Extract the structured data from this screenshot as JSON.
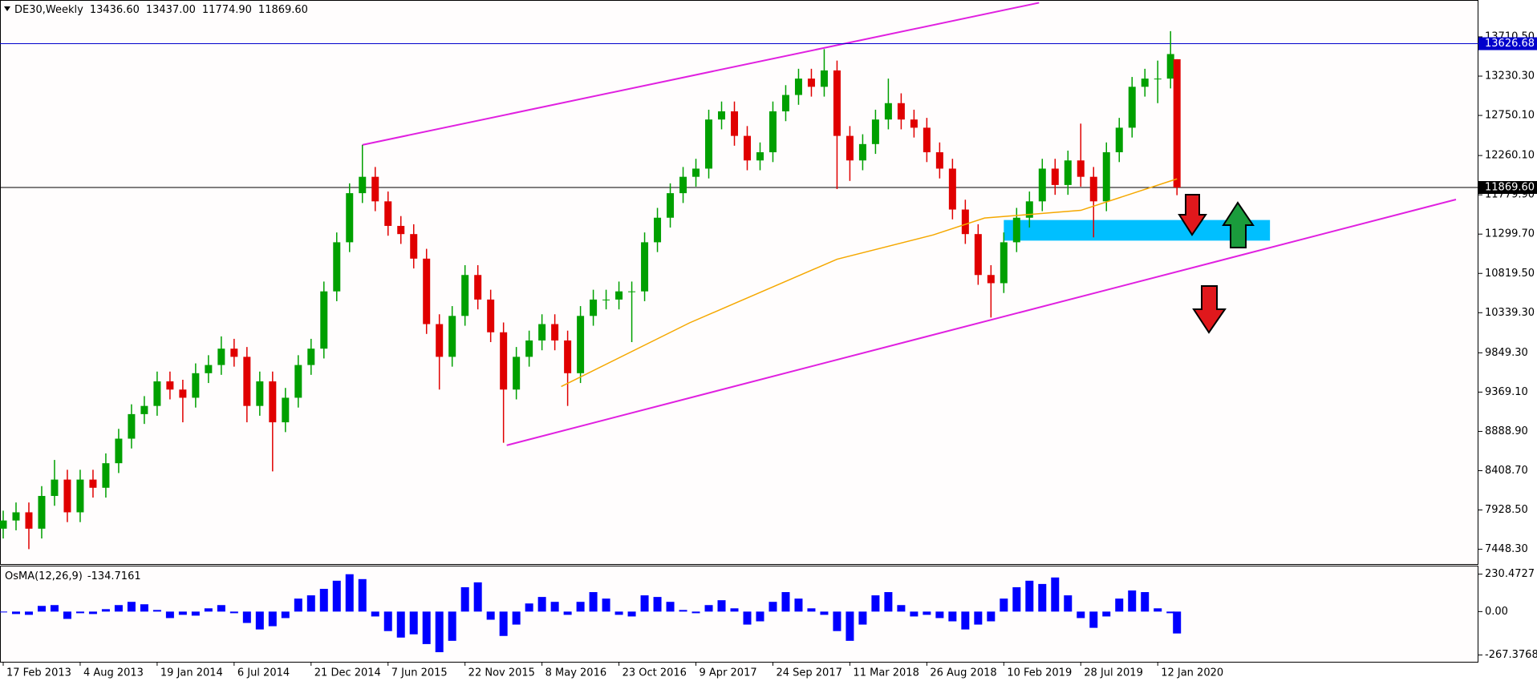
{
  "chart_data": [
    {
      "type": "candlestick",
      "title": "DE30,Weekly",
      "title_values": [
        {
          "value": 13436.6,
          "label": "13436.60"
        },
        {
          "value": 13437,
          "label": "13437.00"
        },
        {
          "value": 11774.9,
          "label": "11774.90"
        },
        {
          "value": 11869.6,
          "label": "11869.60"
        }
      ],
      "x": [
        0,
        4,
        8,
        12,
        16,
        20,
        24,
        28,
        32,
        36,
        40,
        44,
        48,
        52,
        56,
        60,
        64,
        68,
        72,
        76,
        80,
        84,
        88,
        92,
        96,
        100,
        104,
        108,
        112,
        116,
        120,
        124,
        128,
        132,
        136,
        140,
        144,
        148,
        152,
        156,
        160,
        164,
        168,
        172,
        176,
        180,
        184,
        188,
        192,
        196,
        200,
        204,
        208,
        212,
        216,
        220,
        224,
        228,
        232,
        236,
        240,
        244,
        248,
        252,
        256,
        260,
        264,
        268,
        272,
        276,
        280,
        284,
        288,
        292,
        296,
        300,
        304,
        308,
        312,
        316,
        320,
        324,
        328,
        332,
        336,
        340,
        344,
        348,
        352,
        356,
        360,
        364,
        366
      ],
      "open": [
        7700,
        7800,
        7900,
        7700,
        8100,
        8300,
        7900,
        8300,
        8200,
        8500,
        8800,
        9100,
        9200,
        9500,
        9400,
        9300,
        9600,
        9700,
        9900,
        9800,
        9200,
        9500,
        9000,
        9300,
        9700,
        9900,
        10600,
        11200,
        11800,
        12000,
        11700,
        11400,
        11300,
        11000,
        10200,
        9800,
        10300,
        10800,
        10500,
        10100,
        9400,
        9800,
        10000,
        10200,
        10000,
        9600,
        10300,
        10500,
        10500,
        10600,
        10600,
        11200,
        11500,
        11800,
        12000,
        12100,
        12700,
        12800,
        12500,
        12200,
        12300,
        12800,
        13000,
        13200,
        13100,
        13300,
        12500,
        12200,
        12400,
        12700,
        12900,
        12700,
        12600,
        12300,
        12100,
        11600,
        11300,
        10800,
        10700,
        11200,
        11500,
        11700,
        12100,
        11900,
        12200,
        12000,
        11700,
        12300,
        12600,
        13100,
        13200,
        13200,
        13436.6
      ],
      "high": [
        7920,
        8020,
        8020,
        8220,
        8540,
        8420,
        8420,
        8420,
        8620,
        8920,
        9220,
        9320,
        9620,
        9620,
        9520,
        9720,
        9820,
        10050,
        10020,
        9920,
        9620,
        9620,
        9420,
        9820,
        10020,
        10720,
        11320,
        11920,
        12390,
        12120,
        11820,
        11520,
        11420,
        11120,
        10320,
        10420,
        10920,
        10920,
        10620,
        10220,
        9920,
        10120,
        10320,
        10320,
        10120,
        10420,
        10620,
        10620,
        10720,
        10720,
        11320,
        11620,
        11920,
        12120,
        12220,
        12820,
        12920,
        12920,
        12620,
        12420,
        12920,
        13120,
        13320,
        13320,
        13560,
        13420,
        12620,
        12520,
        12820,
        13200,
        13020,
        12820,
        12720,
        12420,
        12220,
        11720,
        11420,
        10920,
        11320,
        11620,
        11820,
        12220,
        12220,
        12320,
        12650,
        12120,
        12420,
        12720,
        13220,
        13320,
        13420,
        13780,
        13437
      ],
      "low": [
        7580,
        7680,
        7450,
        7580,
        7980,
        7780,
        7780,
        8080,
        8080,
        8380,
        8680,
        8980,
        9080,
        9280,
        9000,
        9180,
        9480,
        9580,
        9680,
        9000,
        9080,
        8400,
        8880,
        9180,
        9580,
        9780,
        10480,
        11080,
        11680,
        11580,
        11280,
        11180,
        10880,
        10080,
        9400,
        9680,
        10180,
        10380,
        9980,
        8750,
        9280,
        9680,
        9880,
        9880,
        9200,
        9480,
        10180,
        10380,
        10380,
        9980,
        10480,
        11080,
        11380,
        11680,
        11880,
        11980,
        12580,
        12380,
        12080,
        12080,
        12180,
        12680,
        12880,
        12980,
        12980,
        11850,
        11950,
        12080,
        12280,
        12580,
        12580,
        12480,
        12180,
        11980,
        11480,
        11180,
        10680,
        10280,
        10580,
        11080,
        11380,
        11580,
        11780,
        11780,
        11880,
        11260,
        11580,
        12180,
        12480,
        12980,
        12900,
        13080,
        11774.9
      ],
      "close": [
        7800,
        7900,
        7700,
        8100,
        8300,
        7900,
        8300,
        8200,
        8500,
        8800,
        9100,
        9200,
        9500,
        9400,
        9300,
        9600,
        9700,
        9900,
        9800,
        9200,
        9500,
        9000,
        9300,
        9700,
        9900,
        10600,
        11200,
        11800,
        12000,
        11700,
        11400,
        11300,
        11000,
        10200,
        9800,
        10300,
        10800,
        10500,
        10100,
        9400,
        9800,
        10000,
        10200,
        10000,
        9600,
        10300,
        10500,
        10500,
        10600,
        10600,
        11200,
        11500,
        11800,
        12000,
        12100,
        12700,
        12800,
        12500,
        12200,
        12300,
        12800,
        13000,
        13200,
        13100,
        13300,
        12500,
        12200,
        12400,
        12700,
        12900,
        12700,
        12600,
        12300,
        12100,
        11600,
        11300,
        10800,
        10700,
        11200,
        11500,
        11700,
        12100,
        11900,
        12200,
        12000,
        11700,
        12300,
        12600,
        13100,
        13200,
        13200,
        13500,
        11869.6
      ],
      "colors": {
        "up": "#00a000",
        "down": "#e00000"
      },
      "moving_average": {
        "color": "#f5a800",
        "x": [
          174,
          214,
          260,
          290,
          306,
          336,
          366
        ],
        "values": [
          9437,
          10215,
          10993,
          11290,
          11496,
          11590,
          11975
        ]
      },
      "trendlines": [
        {
          "color": "#e020e0",
          "x": [
            112,
            323
          ],
          "values": [
            12390,
            14127
          ]
        },
        {
          "color": "#e020e0",
          "x": [
            157,
            453
          ],
          "values": [
            8719,
            11723
          ]
        }
      ],
      "zone": {
        "color": "#00bfff",
        "x": [
          312,
          395
        ],
        "values": [
          11220,
          11472
        ]
      },
      "price_lines": [
        {
          "value": 13626.68,
          "color": "#0000cc"
        },
        {
          "value": 11869.6,
          "label": "11869.60",
          "color": "#000000"
        }
      ],
      "xlim": [
        -1,
        460
      ],
      "ylim": [
        7268,
        14141
      ],
      "yticks": [
        {
          "value": 13710.5,
          "label": "13710.50"
        },
        {
          "value": 13230.3,
          "label": "13230.30"
        },
        {
          "value": 12750.1,
          "label": "12750.10"
        },
        {
          "value": 12260.1,
          "label": "12260.10"
        },
        {
          "value": 11779.9,
          "label": "11779.90"
        },
        {
          "value": 11299.7,
          "label": "11299.70"
        },
        {
          "value": 10819.5,
          "label": "10819.50"
        },
        {
          "value": 10339.3,
          "label": "10339.30"
        },
        {
          "value": 9849.3,
          "label": "9849.30"
        },
        {
          "value": 9369.1,
          "label": "9369.10"
        },
        {
          "value": 8888.9,
          "label": "8888.90"
        },
        {
          "value": 8408.7,
          "label": "8408.70"
        },
        {
          "value": 7928.5,
          "label": "7928.50"
        },
        {
          "value": 7448.3,
          "label": "7448.30"
        }
      ]
    },
    {
      "type": "bar",
      "title": "OsMA(12,26,9)",
      "x": [
        0,
        4,
        8,
        12,
        16,
        20,
        24,
        28,
        32,
        36,
        40,
        44,
        48,
        52,
        56,
        60,
        64,
        68,
        72,
        76,
        80,
        84,
        88,
        92,
        96,
        100,
        104,
        108,
        112,
        116,
        120,
        124,
        128,
        132,
        136,
        140,
        144,
        148,
        152,
        156,
        160,
        164,
        168,
        172,
        176,
        180,
        184,
        188,
        192,
        196,
        200,
        204,
        208,
        212,
        216,
        220,
        224,
        228,
        232,
        236,
        240,
        244,
        248,
        252,
        256,
        260,
        264,
        268,
        272,
        276,
        280,
        284,
        288,
        292,
        296,
        300,
        304,
        308,
        312,
        316,
        320,
        324,
        328,
        332,
        336,
        340,
        344,
        348,
        352,
        356,
        360,
        364,
        366
      ],
      "values": [
        -5,
        -15,
        -20,
        35,
        40,
        -45,
        -10,
        -15,
        15,
        40,
        60,
        45,
        10,
        -40,
        -20,
        -25,
        20,
        40,
        -10,
        -70,
        -110,
        -90,
        -40,
        80,
        100,
        140,
        190,
        230,
        200,
        -30,
        -120,
        -160,
        -140,
        -200,
        -250,
        -180,
        150,
        180,
        -50,
        -150,
        -80,
        50,
        90,
        60,
        -20,
        60,
        120,
        80,
        -20,
        -30,
        100,
        90,
        60,
        10,
        -10,
        40,
        70,
        20,
        -80,
        -60,
        60,
        120,
        80,
        20,
        -20,
        -120,
        -180,
        -80,
        100,
        120,
        40,
        -30,
        -20,
        -40,
        -60,
        -110,
        -80,
        -60,
        80,
        150,
        190,
        170,
        210,
        100,
        -40,
        -100,
        -30,
        80,
        130,
        120,
        20,
        -10,
        -134.7161
      ],
      "color": "#0000ff",
      "xlim": [
        -1,
        460
      ],
      "ylim": [
        -309,
        278
      ],
      "yticks": [
        230.4727,
        {
          "value": 0,
          "label": "0.00"
        },
        -267.3768
      ],
      "xticks": [
        {
          "value": 0,
          "label": "17 Feb 2013"
        },
        {
          "value": 24,
          "label": "4 Aug 2013"
        },
        {
          "value": 48,
          "label": "19 Jan 2014"
        },
        {
          "value": 72,
          "label": "6 Jul 2014"
        },
        {
          "value": 96,
          "label": "21 Dec 2014"
        },
        {
          "value": 120,
          "label": "7 Jun 2015"
        },
        {
          "value": 144,
          "label": "22 Nov 2015"
        },
        {
          "value": 168,
          "label": "8 May 2016"
        },
        {
          "value": 192,
          "label": "23 Oct 2016"
        },
        {
          "value": 216,
          "label": "9 Apr 2017"
        },
        {
          "value": 240,
          "label": "24 Sep 2017"
        },
        {
          "value": 264,
          "label": "11 Mar 2018"
        },
        {
          "value": 288,
          "label": "26 Aug 2018"
        },
        {
          "value": 312,
          "label": "10 Feb 2019"
        },
        {
          "value": 336,
          "label": "28 Jul 2019"
        },
        {
          "value": 360,
          "label": "12 Jan 2020"
        }
      ]
    }
  ]
}
